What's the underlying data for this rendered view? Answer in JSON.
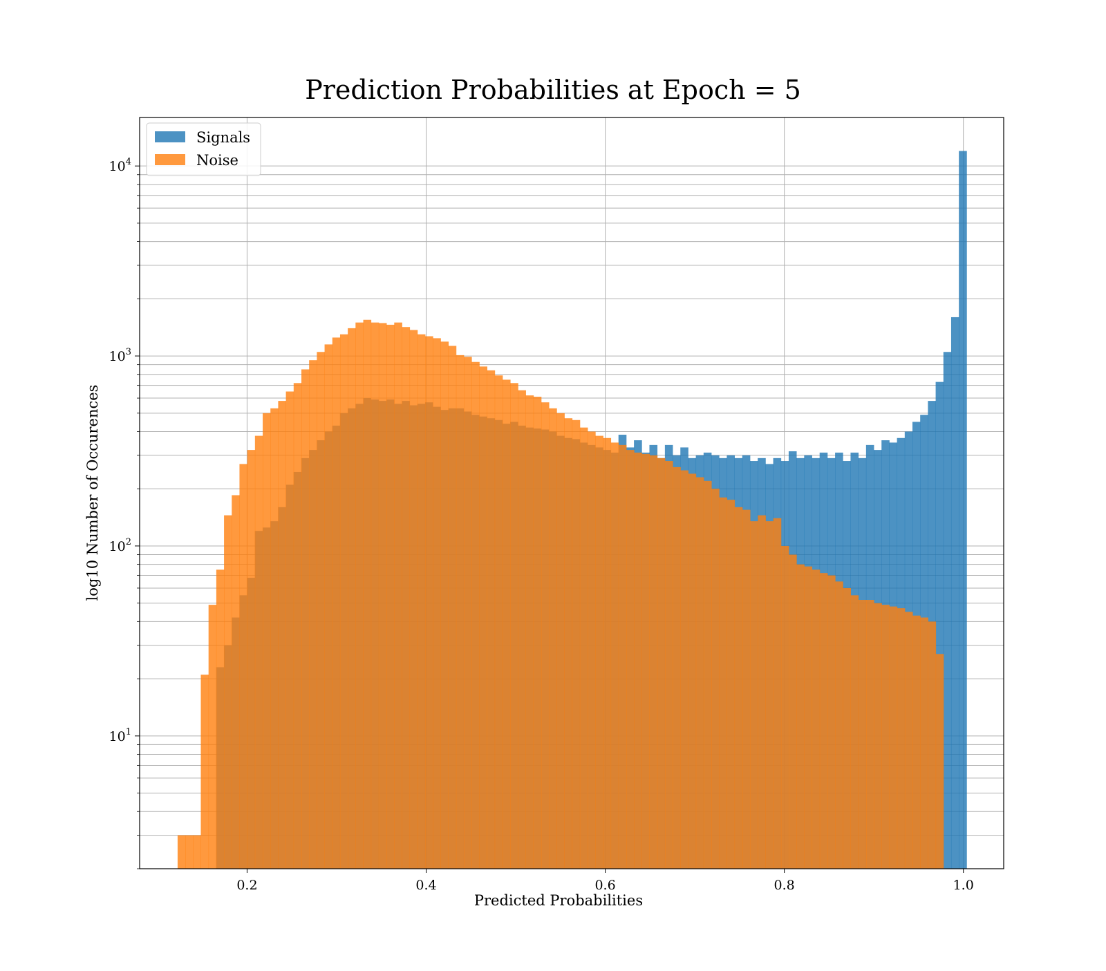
{
  "chart_data": {
    "type": "bar",
    "title": "Prediction Probabilities at Epoch = 5",
    "xlabel": "Predicted Probabilities",
    "ylabel": "log10 Number of Occurences",
    "xlim": [
      0.08,
      1.045
    ],
    "ylim": [
      2,
      18000
    ],
    "yscale": "log",
    "grid": true,
    "legend_position": "top-left",
    "x_ticks": [
      0.2,
      0.4,
      0.6,
      0.8,
      1.0
    ],
    "x_tick_labels": [
      "0.2",
      "0.4",
      "0.6",
      "0.8",
      "1.0"
    ],
    "y_ticks": [
      10,
      100,
      1000,
      10000
    ],
    "y_tick_labels": [
      {
        "base": "10",
        "exp": "1"
      },
      {
        "base": "10",
        "exp": "2"
      },
      {
        "base": "10",
        "exp": "3"
      },
      {
        "base": "10",
        "exp": "4"
      }
    ],
    "series": [
      {
        "name": "Signals",
        "color": "#1f77b4",
        "opacity": 0.8,
        "bin_start": 0.1655,
        "bin_width": 0.00864,
        "values": [
          23,
          30,
          42,
          55,
          68,
          120,
          125,
          135,
          160,
          210,
          245,
          290,
          320,
          360,
          400,
          430,
          500,
          530,
          560,
          600,
          590,
          580,
          590,
          560,
          580,
          550,
          560,
          570,
          540,
          520,
          530,
          530,
          510,
          490,
          480,
          470,
          460,
          440,
          450,
          430,
          420,
          415,
          410,
          400,
          380,
          370,
          365,
          350,
          340,
          330,
          320,
          310,
          385,
          330,
          360,
          310,
          340,
          290,
          340,
          300,
          330,
          290,
          300,
          310,
          300,
          290,
          300,
          290,
          300,
          280,
          290,
          270,
          290,
          280,
          315,
          290,
          300,
          290,
          310,
          290,
          310,
          280,
          310,
          290,
          340,
          320,
          360,
          350,
          370,
          400,
          450,
          490,
          580,
          730,
          1050,
          1600,
          12000
        ]
      },
      {
        "name": "Noise",
        "color": "#ff7f0e",
        "opacity": 0.8,
        "bin_start": 0.1224,
        "bin_width": 0.00864,
        "values": [
          3,
          3,
          3,
          21,
          49,
          75,
          145,
          185,
          270,
          320,
          380,
          500,
          530,
          580,
          650,
          720,
          850,
          950,
          1050,
          1150,
          1250,
          1300,
          1400,
          1500,
          1550,
          1500,
          1490,
          1460,
          1500,
          1420,
          1370,
          1300,
          1270,
          1240,
          1190,
          1130,
          1010,
          990,
          930,
          880,
          840,
          790,
          750,
          720,
          660,
          620,
          610,
          570,
          530,
          500,
          470,
          460,
          420,
          400,
          380,
          370,
          350,
          340,
          320,
          310,
          305,
          300,
          290,
          280,
          260,
          250,
          240,
          230,
          220,
          200,
          180,
          175,
          160,
          155,
          135,
          145,
          135,
          140,
          100,
          90,
          80,
          78,
          75,
          72,
          70,
          65,
          60,
          55,
          52,
          52,
          50,
          49,
          48,
          47,
          45,
          43,
          42,
          40,
          27
        ]
      }
    ]
  }
}
